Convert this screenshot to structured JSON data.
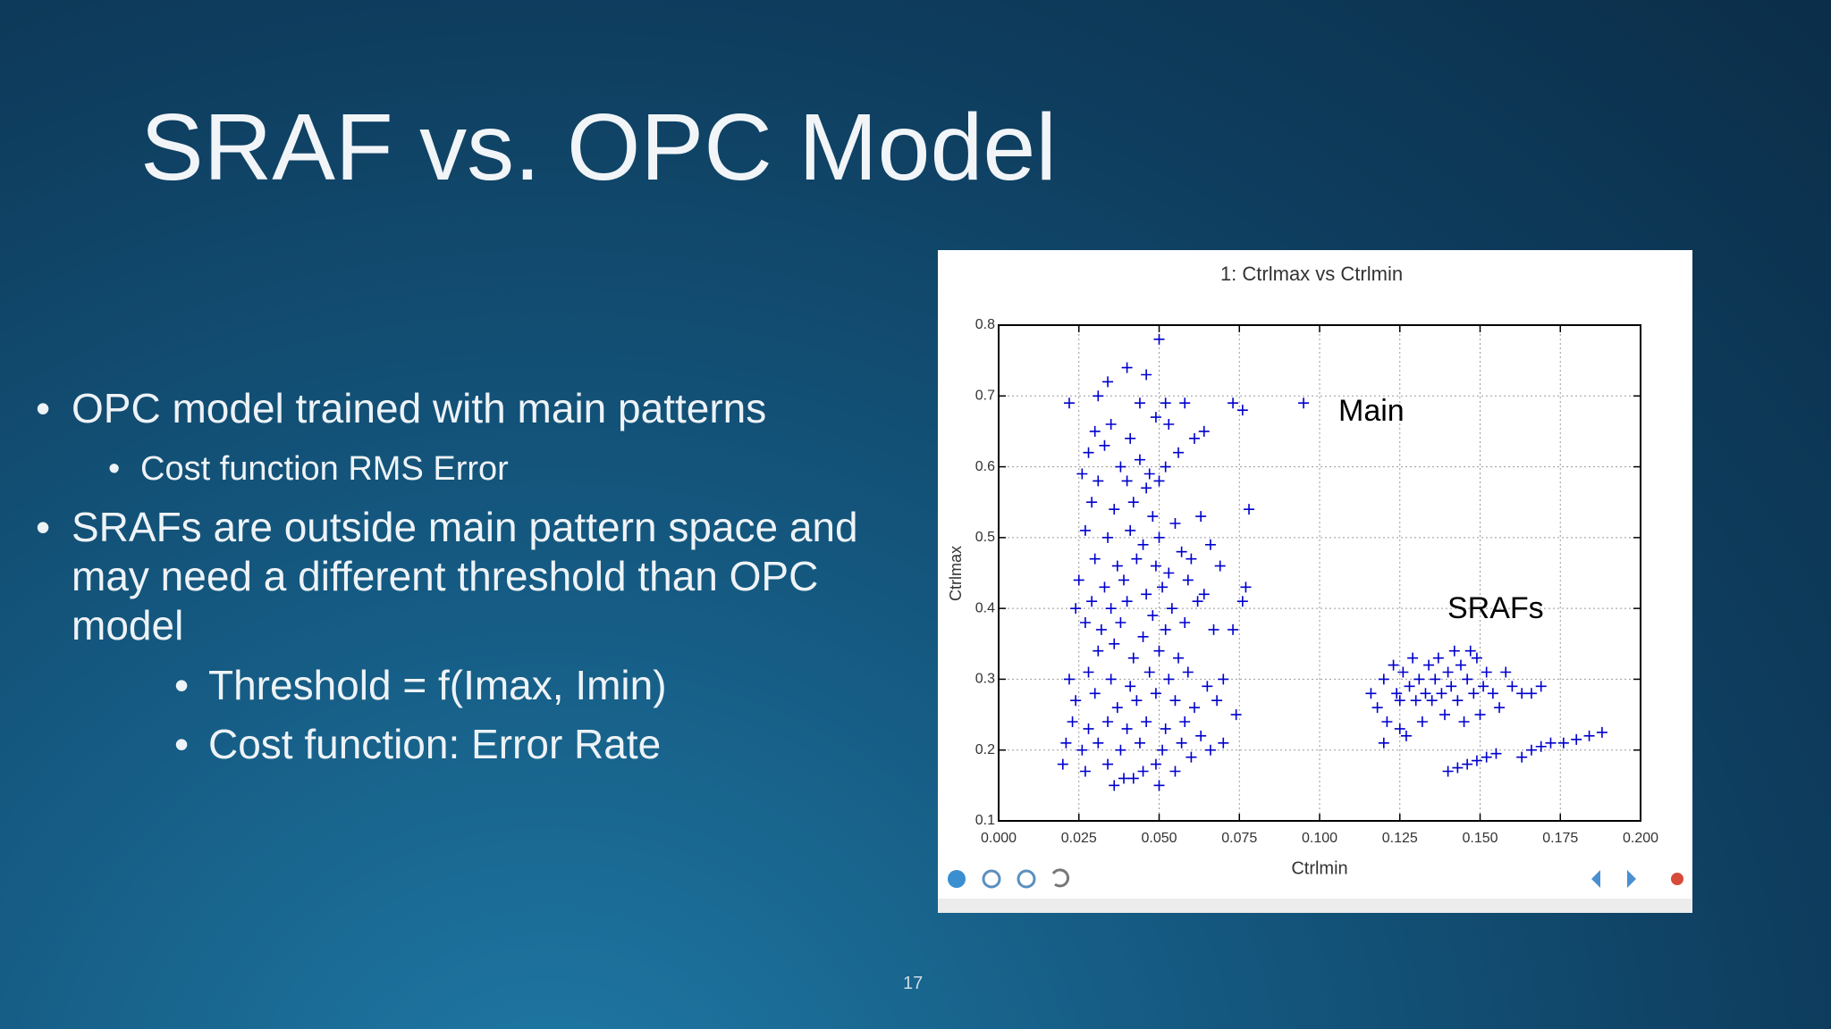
{
  "slide": {
    "title": "SRAF vs. OPC Model",
    "bullets": [
      {
        "text": "OPC model trained with main patterns",
        "children": [
          "Cost function RMS Error"
        ]
      },
      {
        "text": "SRAFs are outside main pattern space and may need a different threshold than OPC model",
        "children": [
          "Threshold = f(Imax, Imin)",
          "Cost function: Error Rate"
        ]
      }
    ],
    "page_number": "17"
  },
  "chart_data": {
    "type": "scatter",
    "title": "1: Ctrlmax vs Ctrlmin",
    "x_label": "Ctrlmin",
    "y_label": "Ctrlmax",
    "annotations": [
      "Main",
      "SRAFs"
    ],
    "color": "#0000cc",
    "grid": true,
    "xlim": [
      0,
      0.2
    ],
    "xticks": [
      {
        "value": 0,
        "label": "0.000"
      },
      {
        "value": 0.025,
        "label": "0.025"
      },
      {
        "value": 0.05,
        "label": "0.050"
      },
      {
        "value": 0.075,
        "label": "0.075"
      },
      {
        "value": 0.1,
        "label": "0.100"
      },
      {
        "value": 0.125,
        "label": "0.125"
      },
      {
        "value": 0.15,
        "label": "0.150"
      },
      {
        "value": 0.175,
        "label": "0.175"
      },
      {
        "value": 0.2,
        "label": "0.200"
      }
    ],
    "ylim": [
      0.1,
      0.8
    ],
    "yticks": [
      0.1,
      0.2,
      0.3,
      0.4,
      0.5,
      0.6,
      0.7,
      0.8
    ],
    "x": [
      0.022,
      0.031,
      0.034,
      0.04,
      0.046,
      0.05,
      0.044,
      0.052,
      0.058,
      0.073,
      0.076,
      0.095,
      0.03,
      0.035,
      0.041,
      0.049,
      0.053,
      0.061,
      0.064,
      0.028,
      0.033,
      0.038,
      0.044,
      0.047,
      0.052,
      0.056,
      0.026,
      0.031,
      0.04,
      0.046,
      0.05,
      0.029,
      0.036,
      0.042,
      0.048,
      0.055,
      0.063,
      0.078,
      0.027,
      0.034,
      0.041,
      0.045,
      0.05,
      0.057,
      0.066,
      0.03,
      0.037,
      0.043,
      0.049,
      0.053,
      0.06,
      0.069,
      0.025,
      0.033,
      0.039,
      0.046,
      0.051,
      0.059,
      0.064,
      0.077,
      0.024,
      0.029,
      0.035,
      0.04,
      0.048,
      0.054,
      0.062,
      0.076,
      0.027,
      0.032,
      0.038,
      0.045,
      0.052,
      0.058,
      0.067,
      0.073,
      0.031,
      0.036,
      0.042,
      0.05,
      0.056,
      0.022,
      0.028,
      0.035,
      0.041,
      0.047,
      0.053,
      0.059,
      0.065,
      0.07,
      0.024,
      0.03,
      0.037,
      0.043,
      0.049,
      0.055,
      0.061,
      0.068,
      0.023,
      0.028,
      0.034,
      0.04,
      0.046,
      0.052,
      0.058,
      0.063,
      0.074,
      0.021,
      0.026,
      0.031,
      0.038,
      0.044,
      0.051,
      0.057,
      0.066,
      0.07,
      0.02,
      0.027,
      0.034,
      0.039,
      0.045,
      0.049,
      0.055,
      0.06,
      0.036,
      0.042,
      0.05,
      0.116,
      0.118,
      0.12,
      0.121,
      0.123,
      0.124,
      0.125,
      0.126,
      0.127,
      0.128,
      0.129,
      0.13,
      0.131,
      0.132,
      0.133,
      0.134,
      0.135,
      0.136,
      0.137,
      0.138,
      0.139,
      0.14,
      0.141,
      0.142,
      0.143,
      0.144,
      0.145,
      0.146,
      0.147,
      0.148,
      0.149,
      0.15,
      0.151,
      0.152,
      0.154,
      0.156,
      0.158,
      0.16,
      0.163,
      0.166,
      0.169,
      0.14,
      0.143,
      0.146,
      0.149,
      0.152,
      0.155,
      0.163,
      0.166,
      0.169,
      0.172,
      0.176,
      0.18,
      0.184,
      0.188,
      0.12,
      0.125
    ],
    "values": [
      0.69,
      0.7,
      0.72,
      0.74,
      0.73,
      0.78,
      0.69,
      0.69,
      0.69,
      0.69,
      0.68,
      0.69,
      0.65,
      0.66,
      0.64,
      0.67,
      0.66,
      0.64,
      0.65,
      0.62,
      0.63,
      0.6,
      0.61,
      0.59,
      0.6,
      0.62,
      0.59,
      0.58,
      0.58,
      0.57,
      0.58,
      0.55,
      0.54,
      0.55,
      0.53,
      0.52,
      0.53,
      0.54,
      0.51,
      0.5,
      0.51,
      0.49,
      0.5,
      0.48,
      0.49,
      0.47,
      0.46,
      0.47,
      0.46,
      0.45,
      0.47,
      0.46,
      0.44,
      0.43,
      0.44,
      0.42,
      0.43,
      0.44,
      0.42,
      0.43,
      0.4,
      0.41,
      0.4,
      0.41,
      0.39,
      0.4,
      0.41,
      0.41,
      0.38,
      0.37,
      0.38,
      0.36,
      0.37,
      0.38,
      0.37,
      0.37,
      0.34,
      0.35,
      0.33,
      0.34,
      0.33,
      0.3,
      0.31,
      0.3,
      0.29,
      0.31,
      0.3,
      0.31,
      0.29,
      0.3,
      0.27,
      0.28,
      0.26,
      0.27,
      0.28,
      0.27,
      0.26,
      0.27,
      0.24,
      0.23,
      0.24,
      0.23,
      0.24,
      0.23,
      0.24,
      0.22,
      0.25,
      0.21,
      0.2,
      0.21,
      0.2,
      0.21,
      0.2,
      0.21,
      0.2,
      0.21,
      0.18,
      0.17,
      0.18,
      0.16,
      0.17,
      0.18,
      0.17,
      0.19,
      0.15,
      0.16,
      0.15,
      0.28,
      0.26,
      0.3,
      0.24,
      0.32,
      0.28,
      0.27,
      0.31,
      0.22,
      0.29,
      0.33,
      0.27,
      0.3,
      0.24,
      0.28,
      0.32,
      0.27,
      0.3,
      0.33,
      0.28,
      0.25,
      0.31,
      0.29,
      0.34,
      0.27,
      0.32,
      0.24,
      0.3,
      0.34,
      0.28,
      0.33,
      0.25,
      0.29,
      0.31,
      0.28,
      0.26,
      0.31,
      0.29,
      0.28,
      0.28,
      0.29,
      0.17,
      0.175,
      0.18,
      0.185,
      0.19,
      0.195,
      0.19,
      0.2,
      0.205,
      0.21,
      0.21,
      0.215,
      0.22,
      0.225,
      0.21,
      0.23
    ]
  }
}
